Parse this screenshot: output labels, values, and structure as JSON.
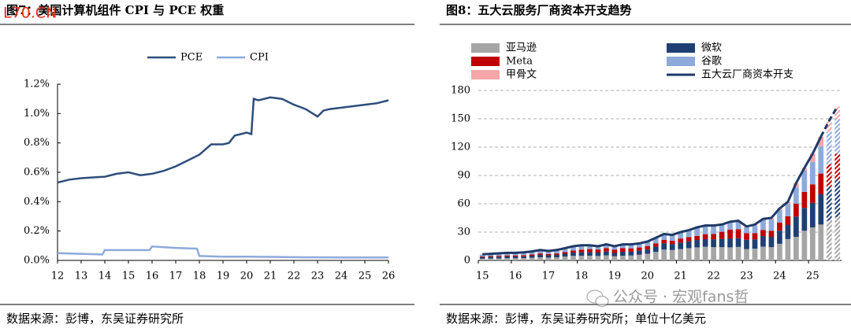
{
  "overlay_mark": "L70.CN",
  "wechat_watermark": "公众号 · 宏观fans哲",
  "chart_data": [
    {
      "type": "line",
      "title": "图7：美国计算机组件 CPI 与 PCE 权重",
      "source": "数据来源：彭博，东吴证券研究所",
      "legend": "top",
      "grid": false,
      "xlim": [
        12,
        26
      ],
      "xticks": [
        12,
        13,
        14,
        15,
        16,
        17,
        18,
        19,
        20,
        21,
        22,
        23,
        24,
        25,
        26
      ],
      "ylim": [
        0,
        1.2
      ],
      "yticks": [
        {
          "value": 0,
          "label": "0.0%"
        },
        {
          "value": 0.2,
          "label": "0.2%"
        },
        {
          "value": 0.4,
          "label": "0.4%"
        },
        {
          "value": 0.6,
          "label": "0.6%"
        },
        {
          "value": 0.8,
          "label": "0.8%"
        },
        {
          "value": 1.0,
          "label": "1.0%"
        },
        {
          "value": 1.2,
          "label": "1.2%"
        }
      ],
      "series": [
        {
          "name": "PCE",
          "color": "#2e4d7b",
          "x": [
            12,
            12.5,
            13,
            13.5,
            14,
            14.5,
            15,
            15.5,
            16,
            16.5,
            17,
            17.5,
            18,
            18.5,
            19,
            19.25,
            19.5,
            19.75,
            20,
            20.2,
            20.3,
            20.5,
            21,
            21.5,
            22,
            22.5,
            23,
            23.25,
            23.5,
            24,
            24.5,
            25,
            25.5,
            26
          ],
          "values": [
            0.53,
            0.55,
            0.56,
            0.565,
            0.57,
            0.59,
            0.6,
            0.58,
            0.59,
            0.61,
            0.64,
            0.68,
            0.72,
            0.79,
            0.79,
            0.8,
            0.85,
            0.86,
            0.87,
            0.86,
            1.1,
            1.09,
            1.11,
            1.1,
            1.06,
            1.03,
            0.98,
            1.02,
            1.03,
            1.04,
            1.05,
            1.06,
            1.07,
            1.09
          ]
        },
        {
          "name": "CPI",
          "color": "#8eaadb",
          "x": [
            12,
            13,
            13.9,
            14,
            15,
            15.9,
            16,
            17,
            17.9,
            18,
            19,
            20,
            22,
            24,
            26
          ],
          "values": [
            0.05,
            0.045,
            0.04,
            0.07,
            0.07,
            0.07,
            0.095,
            0.085,
            0.08,
            0.03,
            0.025,
            0.025,
            0.022,
            0.02,
            0.02
          ]
        }
      ]
    },
    {
      "type": "bar",
      "stacked": true,
      "title": "图8：五大云服务厂商资本开支趋势",
      "source": "数据来源：彭博，东吴证券研究所；单位十亿美元",
      "legend": "top-left",
      "grid": true,
      "ylim": [
        0,
        180
      ],
      "yticks": [
        0,
        30,
        60,
        90,
        120,
        150,
        180
      ],
      "categories": [
        "15",
        null,
        null,
        null,
        "16",
        null,
        null,
        null,
        "17",
        null,
        null,
        null,
        "18",
        null,
        null,
        null,
        "19",
        null,
        null,
        null,
        "20",
        null,
        null,
        null,
        "21",
        null,
        null,
        null,
        "22",
        null,
        null,
        null,
        "23",
        null,
        null,
        null,
        "24",
        null,
        null,
        null,
        "25",
        null,
        null,
        null
      ],
      "forecast": [
        false,
        false,
        false,
        false,
        false,
        false,
        false,
        false,
        false,
        false,
        false,
        false,
        false,
        false,
        false,
        false,
        false,
        false,
        false,
        false,
        false,
        false,
        false,
        false,
        false,
        false,
        false,
        false,
        false,
        false,
        false,
        false,
        false,
        false,
        false,
        false,
        false,
        false,
        false,
        false,
        false,
        false,
        true,
        true
      ],
      "series": [
        {
          "name": "亚马逊",
          "color": "#a6a6a6",
          "values": [
            1.8,
            2,
            2.1,
            2.3,
            2.3,
            2.4,
            2.8,
            3.3,
            3,
            3.3,
            4,
            4.8,
            5,
            5,
            4.7,
            5.4,
            4.4,
            5,
            5.2,
            6,
            7,
            9,
            11.5,
            11,
            12,
            13,
            13.8,
            14.5,
            14,
            14,
            13.8,
            14.3,
            12,
            12.5,
            14.6,
            14,
            17.6,
            22.6,
            25,
            31.4,
            35,
            38,
            42,
            46
          ]
        },
        {
          "name": "微软",
          "color": "#1f3f73",
          "values": [
            1.6,
            1.7,
            1.8,
            1.9,
            1.9,
            2,
            2.2,
            2.6,
            2.4,
            2.6,
            3.1,
            3.5,
            3.6,
            3.8,
            3.6,
            4,
            3.5,
            4.2,
            4.1,
            4.3,
            4.5,
            5.5,
            6.5,
            6.2,
            6.9,
            7.2,
            7.8,
            8,
            8.4,
            8.8,
            9.5,
            9.3,
            9.9,
            9.8,
            11.2,
            11,
            13.9,
            14.9,
            21.4,
            24.2,
            26,
            32,
            36,
            40
          ]
        },
        {
          "name": "Meta",
          "color": "#c00000",
          "values": [
            0.8,
            0.9,
            1,
            1.1,
            1.1,
            1.2,
            1.3,
            1.5,
            1.4,
            1.5,
            1.8,
            2.2,
            2.8,
            3.2,
            3.3,
            3.6,
            3.6,
            3.8,
            3.5,
            3.4,
            3.7,
            3.6,
            3.7,
            3.6,
            4.3,
            4.6,
            4.3,
            5.3,
            5.6,
            7.5,
            9.4,
            9.4,
            7,
            6.5,
            6.4,
            6.4,
            8.5,
            9.2,
            13.7,
            17,
            19.4,
            22,
            24,
            27
          ]
        },
        {
          "name": "谷歌",
          "color": "#8eaadb",
          "values": [
            1.9,
            2,
            2.2,
            2.3,
            2.3,
            2.5,
            2.8,
            3.1,
            2.7,
            3.1,
            3.6,
            4,
            4.1,
            3.5,
            3,
            3.5,
            3,
            3.5,
            3.7,
            3.8,
            4.3,
            5.3,
            5.7,
            5.6,
            6.2,
            6.6,
            8.3,
            8.3,
            8.2,
            6.8,
            7.3,
            7.6,
            6.3,
            8.1,
            11,
            12,
            13.2,
            13.1,
            17.2,
            22.4,
            24,
            29,
            34,
            37
          ]
        },
        {
          "name": "甲骨文",
          "color": "#f4a6a8",
          "values": [
            0.4,
            0.4,
            0.4,
            0.4,
            0.4,
            0.4,
            0.4,
            0.5,
            0.5,
            0.5,
            0.5,
            0.5,
            0.5,
            0.5,
            0.4,
            0.5,
            0.5,
            0.5,
            0.5,
            0.5,
            0.5,
            0.6,
            0.6,
            0.6,
            0.6,
            0.6,
            0.8,
            0.9,
            0.8,
            0.9,
            1,
            1.4,
            0.8,
            1.1,
            0.8,
            1.6,
            1.8,
            2.2,
            4.7,
            3,
            8.6,
            10,
            12,
            13
          ]
        },
        {
          "name": "五大云厂商资本开支",
          "color": "#1f3a68",
          "type": "line",
          "values": [
            6.5,
            7,
            7.5,
            8,
            8,
            8.5,
            9.5,
            11,
            10,
            11,
            13,
            15,
            16,
            16,
            15,
            17,
            15,
            17,
            17,
            18,
            20,
            24,
            28,
            27,
            30,
            32,
            35,
            37,
            37,
            38,
            41,
            42,
            36,
            38,
            44,
            45,
            55,
            62,
            82,
            98,
            113,
            131,
            148,
            163
          ]
        }
      ]
    }
  ]
}
